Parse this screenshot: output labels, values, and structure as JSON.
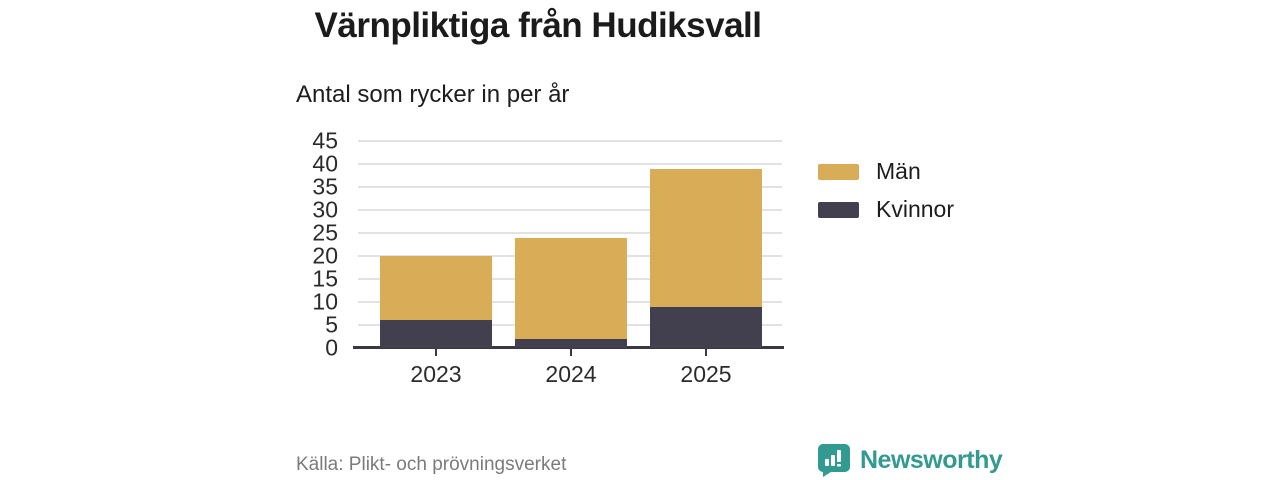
{
  "title": "Värnpliktiga från Hudiksvall",
  "subtitle": "Antal som rycker in per år",
  "source": "Källa: Plikt- och prövningsverket",
  "brand": {
    "name": "Newsworthy",
    "color": "#339a92",
    "icon": "bar-chart-speech-bubble-icon"
  },
  "colors": {
    "men": "#d9ac58",
    "women": "#423f4e",
    "grid": "#e2e2e2",
    "axis": "#3a3843",
    "tick_text": "#2b2b2b",
    "muted_text": "#7b7b7b"
  },
  "legend": [
    {
      "label": "Män",
      "color": "#d9ac58"
    },
    {
      "label": "Kvinnor",
      "color": "#423f4e"
    }
  ],
  "chart_data": {
    "type": "bar",
    "stacked": true,
    "title": "Värnpliktiga från Hudiksvall",
    "subtitle": "Antal som rycker in per år",
    "categories": [
      "2023",
      "2024",
      "2025"
    ],
    "series": [
      {
        "name": "Kvinnor",
        "color": "#423f4e",
        "values": [
          6,
          2,
          9
        ]
      },
      {
        "name": "Män",
        "color": "#d9ac58",
        "values": [
          14,
          22,
          30
        ]
      }
    ],
    "totals": [
      20,
      24,
      39
    ],
    "xlabel": "",
    "ylabel": "",
    "ylim": [
      0,
      45
    ],
    "yticks": [
      0,
      5,
      10,
      15,
      20,
      25,
      30,
      35,
      40,
      45
    ],
    "grid": true,
    "legend_position": "right"
  }
}
